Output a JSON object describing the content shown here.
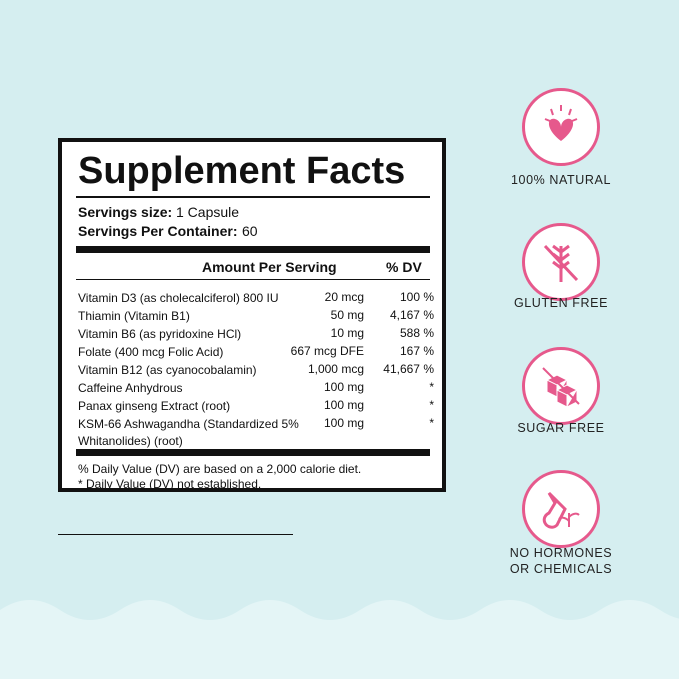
{
  "facts": {
    "title": "Supplement Facts",
    "servings": [
      {
        "label": "Servings size:",
        "value": "1 Capsule"
      },
      {
        "label": "Servings Per Container:",
        "value": "60"
      }
    ],
    "header": {
      "amount": "Amount Per Serving",
      "dv": "% DV"
    },
    "rows": [
      {
        "name": "Vitamin D3 (as cholecalciferol) 800 IU",
        "amount": "20 mcg",
        "dv": "100 %"
      },
      {
        "name": "Thiamin (Vitamin B1)",
        "amount": "50 mg",
        "dv": "4,167 %"
      },
      {
        "name": "Vitamin B6 (as pyridoxine HCl)",
        "amount": "10 mg",
        "dv": "588 %"
      },
      {
        "name": "Folate (400 mcg Folic Acid)",
        "amount": "667 mcg DFE",
        "dv": "167 %"
      },
      {
        "name": "Vitamin B12 (as cyanocobalamin)",
        "amount": "1,000 mcg",
        "dv": "41,667 %"
      },
      {
        "name": "Caffeine Anhydrous",
        "amount": "100 mg",
        "dv": "*"
      },
      {
        "name": "Panax ginseng Extract (root)",
        "amount": "100 mg",
        "dv": "*"
      },
      {
        "name": "KSM-66 Ashwagandha (Standardized 5% Whitanolides) (root)",
        "amount": "100 mg",
        "dv": "*"
      }
    ],
    "footnotes": [
      "% Daily Value (DV) are based on a 2,000 calorie diet.",
      "* Daily Value (DV) not established."
    ]
  },
  "badges": [
    {
      "lines": [
        "100% NATURAL"
      ]
    },
    {
      "lines": [
        "GLUTEN FREE"
      ]
    },
    {
      "lines": [
        "SUGAR FREE"
      ]
    },
    {
      "lines": [
        "NO HORMONES",
        "OR CHEMICALS"
      ]
    }
  ]
}
